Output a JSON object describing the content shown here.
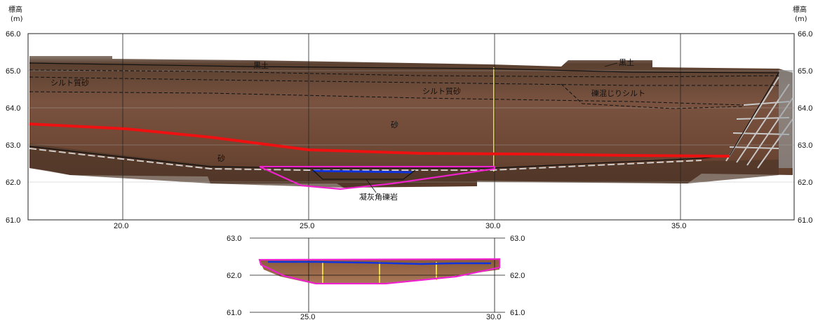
{
  "axis": {
    "elevation_label": "標高",
    "elevation_unit": "(m)"
  },
  "main_panel": {
    "y_ticks": [
      "66.0",
      "65.0",
      "64.0",
      "63.0",
      "62.0",
      "61.0"
    ],
    "x_ticks": [
      "20.0",
      "25.0",
      "30.0",
      "35.0"
    ],
    "layers": {
      "kuroboku_left": "黒土",
      "kuroboku_right": "黒土",
      "silty_sand_left": "シルト質砂",
      "silty_sand_right": "シルト質砂",
      "gravelly_silt": "礫混じりシルト",
      "sand_upper": "砂",
      "sand_lower": "砂",
      "tuff_breccia": "凝灰角礫岩"
    }
  },
  "inset_panel": {
    "y_ticks": [
      "63.0",
      "62.0",
      "61.0"
    ],
    "x_ticks": [
      "25.0",
      "30.0"
    ]
  },
  "colors": {
    "red_line": "#ee1111",
    "magenta_line": "#ee22cc",
    "blue_line": "#1133dd",
    "soil": "#6e4a36"
  }
}
